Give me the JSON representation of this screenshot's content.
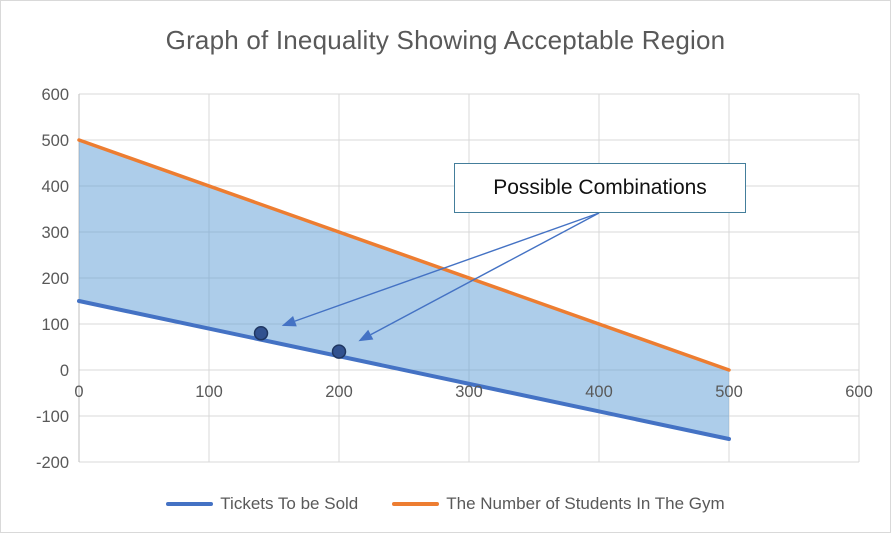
{
  "chart_data": {
    "type": "line",
    "title": "Graph of Inequality Showing Acceptable Region",
    "xlabel": "",
    "ylabel": "",
    "xlim": [
      0,
      600
    ],
    "ylim": [
      -200,
      600
    ],
    "x_ticks": [
      0,
      100,
      200,
      300,
      400,
      500,
      600
    ],
    "y_ticks": [
      600,
      500,
      400,
      300,
      200,
      100,
      0,
      -100,
      -200
    ],
    "grid": true,
    "legend_position": "bottom",
    "series": [
      {
        "name": "Tickets To be Sold",
        "color": "#4472C4",
        "stroke_width": 4,
        "points": [
          [
            0,
            150
          ],
          [
            500,
            -150
          ]
        ]
      },
      {
        "name": "The Number of Students In The Gym",
        "color": "#ED7D31",
        "stroke_width": 3.5,
        "points": [
          [
            0,
            500
          ],
          [
            500,
            0
          ]
        ]
      }
    ],
    "shaded_region": {
      "description": "acceptable region between the two lines",
      "color": "rgba(91,155,213,0.5)",
      "vertices": [
        [
          0,
          150
        ],
        [
          0,
          500
        ],
        [
          500,
          0
        ],
        [
          500,
          -150
        ]
      ]
    },
    "scatter_points": {
      "fill": "#31518F",
      "stroke": "#1F3661",
      "points": [
        [
          140,
          80
        ],
        [
          200,
          40
        ]
      ]
    },
    "annotation": {
      "label": "Possible Combinations",
      "border_color": "#447e9b",
      "arrow_color": "#4472C4",
      "targets": [
        [
          140,
          80
        ],
        [
          200,
          40
        ]
      ]
    },
    "grid_color": "#D9D9D9",
    "axis_line_color": "#BFBFBF",
    "tick_label_color": "#595959",
    "title_color": "#595959"
  }
}
